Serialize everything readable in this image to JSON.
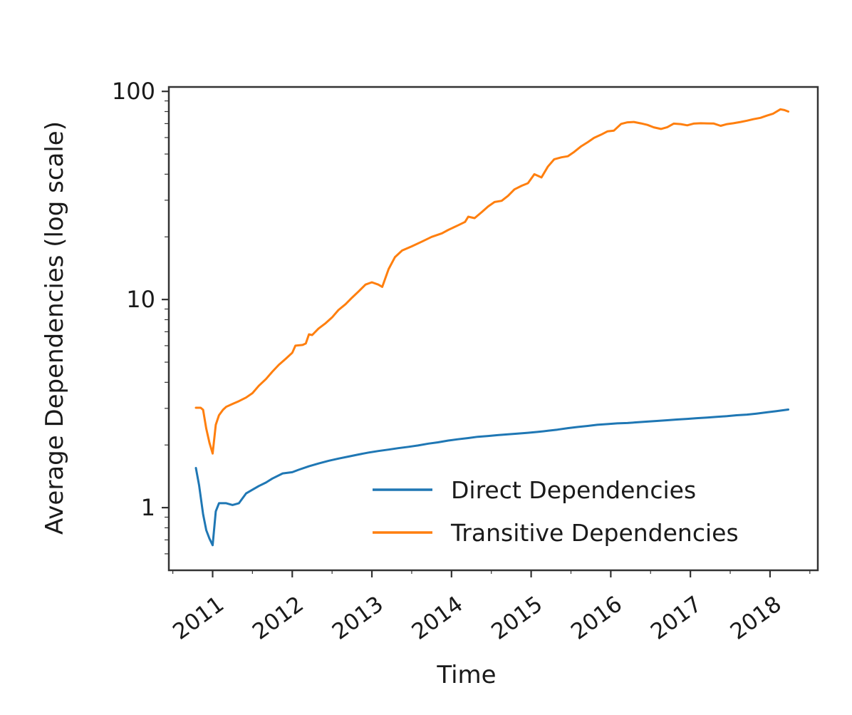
{
  "figure": {
    "background": "#ffffff",
    "frame_color": "#333333",
    "text_color": "#1a1a1a"
  },
  "chart_data": {
    "type": "line",
    "xlabel": "Time",
    "ylabel": "Average Dependencies (log scale)",
    "y_scale": "log",
    "grid": "off",
    "legend_position": "inside lower-right",
    "xlim": [
      2010.45,
      2018.6
    ],
    "ylim": [
      0.5,
      105
    ],
    "x_ticks": [
      2011,
      2012,
      2013,
      2014,
      2015,
      2016,
      2017,
      2018
    ],
    "y_ticks": [
      1,
      10,
      100
    ],
    "series": [
      {
        "name": "Direct Dependencies",
        "color": "#1f77b4",
        "points": [
          [
            2010.79,
            1.55
          ],
          [
            2010.83,
            1.28
          ],
          [
            2010.88,
            0.93
          ],
          [
            2010.92,
            0.78
          ],
          [
            2010.96,
            0.71
          ],
          [
            2011.0,
            0.66
          ],
          [
            2011.04,
            0.96
          ],
          [
            2011.08,
            1.05
          ],
          [
            2011.17,
            1.05
          ],
          [
            2011.25,
            1.03
          ],
          [
            2011.33,
            1.05
          ],
          [
            2011.42,
            1.17
          ],
          [
            2011.5,
            1.22
          ],
          [
            2011.58,
            1.27
          ],
          [
            2011.67,
            1.32
          ],
          [
            2011.75,
            1.38
          ],
          [
            2011.88,
            1.46
          ],
          [
            2012.0,
            1.48
          ],
          [
            2012.08,
            1.52
          ],
          [
            2012.21,
            1.58
          ],
          [
            2012.33,
            1.63
          ],
          [
            2012.46,
            1.68
          ],
          [
            2012.58,
            1.72
          ],
          [
            2012.71,
            1.76
          ],
          [
            2012.83,
            1.8
          ],
          [
            2012.96,
            1.84
          ],
          [
            2013.08,
            1.87
          ],
          [
            2013.21,
            1.9
          ],
          [
            2013.33,
            1.93
          ],
          [
            2013.46,
            1.96
          ],
          [
            2013.58,
            1.99
          ],
          [
            2013.71,
            2.03
          ],
          [
            2013.83,
            2.06
          ],
          [
            2013.96,
            2.1
          ],
          [
            2014.08,
            2.13
          ],
          [
            2014.21,
            2.16
          ],
          [
            2014.33,
            2.19
          ],
          [
            2014.46,
            2.21
          ],
          [
            2014.58,
            2.23
          ],
          [
            2014.71,
            2.25
          ],
          [
            2014.83,
            2.27
          ],
          [
            2014.96,
            2.29
          ],
          [
            2015.08,
            2.31
          ],
          [
            2015.21,
            2.34
          ],
          [
            2015.33,
            2.37
          ],
          [
            2015.46,
            2.41
          ],
          [
            2015.58,
            2.44
          ],
          [
            2015.71,
            2.47
          ],
          [
            2015.83,
            2.5
          ],
          [
            2015.96,
            2.52
          ],
          [
            2016.08,
            2.54
          ],
          [
            2016.21,
            2.55
          ],
          [
            2016.33,
            2.57
          ],
          [
            2016.46,
            2.59
          ],
          [
            2016.58,
            2.61
          ],
          [
            2016.71,
            2.63
          ],
          [
            2016.83,
            2.65
          ],
          [
            2016.96,
            2.67
          ],
          [
            2017.08,
            2.69
          ],
          [
            2017.21,
            2.71
          ],
          [
            2017.33,
            2.73
          ],
          [
            2017.46,
            2.75
          ],
          [
            2017.58,
            2.78
          ],
          [
            2017.71,
            2.8
          ],
          [
            2017.83,
            2.83
          ],
          [
            2017.96,
            2.87
          ],
          [
            2018.08,
            2.91
          ],
          [
            2018.23,
            2.96
          ]
        ]
      },
      {
        "name": "Transitive Dependencies",
        "color": "#ff7f0e",
        "points": [
          [
            2010.79,
            3.02
          ],
          [
            2010.85,
            3.02
          ],
          [
            2010.88,
            2.95
          ],
          [
            2010.92,
            2.4
          ],
          [
            2010.96,
            2.05
          ],
          [
            2011.0,
            1.82
          ],
          [
            2011.04,
            2.5
          ],
          [
            2011.08,
            2.78
          ],
          [
            2011.13,
            2.95
          ],
          [
            2011.17,
            3.05
          ],
          [
            2011.25,
            3.15
          ],
          [
            2011.33,
            3.25
          ],
          [
            2011.42,
            3.38
          ],
          [
            2011.5,
            3.55
          ],
          [
            2011.58,
            3.85
          ],
          [
            2011.67,
            4.15
          ],
          [
            2011.75,
            4.5
          ],
          [
            2011.83,
            4.85
          ],
          [
            2011.92,
            5.2
          ],
          [
            2012.0,
            5.55
          ],
          [
            2012.04,
            6.0
          ],
          [
            2012.13,
            6.05
          ],
          [
            2012.17,
            6.15
          ],
          [
            2012.21,
            6.8
          ],
          [
            2012.25,
            6.75
          ],
          [
            2012.33,
            7.25
          ],
          [
            2012.42,
            7.7
          ],
          [
            2012.5,
            8.2
          ],
          [
            2012.58,
            8.9
          ],
          [
            2012.67,
            9.5
          ],
          [
            2012.75,
            10.2
          ],
          [
            2012.83,
            10.9
          ],
          [
            2012.92,
            11.8
          ],
          [
            2013.0,
            12.1
          ],
          [
            2013.08,
            11.8
          ],
          [
            2013.13,
            11.5
          ],
          [
            2013.21,
            14.0
          ],
          [
            2013.29,
            16.0
          ],
          [
            2013.38,
            17.2
          ],
          [
            2013.5,
            18.0
          ],
          [
            2013.63,
            19.0
          ],
          [
            2013.75,
            20.0
          ],
          [
            2013.88,
            20.8
          ],
          [
            2013.96,
            21.6
          ],
          [
            2014.08,
            22.7
          ],
          [
            2014.17,
            23.6
          ],
          [
            2014.21,
            25.0
          ],
          [
            2014.29,
            24.6
          ],
          [
            2014.38,
            26.3
          ],
          [
            2014.46,
            28.0
          ],
          [
            2014.54,
            29.4
          ],
          [
            2014.63,
            29.8
          ],
          [
            2014.71,
            31.5
          ],
          [
            2014.79,
            33.8
          ],
          [
            2014.88,
            35.2
          ],
          [
            2014.96,
            36.2
          ],
          [
            2015.04,
            40.0
          ],
          [
            2015.13,
            38.6
          ],
          [
            2015.21,
            43.5
          ],
          [
            2015.29,
            47.2
          ],
          [
            2015.38,
            48.2
          ],
          [
            2015.46,
            48.8
          ],
          [
            2015.54,
            51.2
          ],
          [
            2015.63,
            54.5
          ],
          [
            2015.71,
            57.0
          ],
          [
            2015.79,
            59.8
          ],
          [
            2015.88,
            62.0
          ],
          [
            2015.96,
            64.3
          ],
          [
            2016.04,
            64.8
          ],
          [
            2016.13,
            69.8
          ],
          [
            2016.21,
            71.0
          ],
          [
            2016.29,
            71.3
          ],
          [
            2016.38,
            70.2
          ],
          [
            2016.46,
            69.0
          ],
          [
            2016.54,
            67.2
          ],
          [
            2016.63,
            66.0
          ],
          [
            2016.71,
            67.3
          ],
          [
            2016.79,
            70.0
          ],
          [
            2016.88,
            69.6
          ],
          [
            2016.96,
            68.7
          ],
          [
            2017.04,
            70.0
          ],
          [
            2017.13,
            70.3
          ],
          [
            2017.21,
            70.2
          ],
          [
            2017.29,
            70.1
          ],
          [
            2017.38,
            68.3
          ],
          [
            2017.46,
            69.6
          ],
          [
            2017.54,
            70.3
          ],
          [
            2017.63,
            71.3
          ],
          [
            2017.71,
            72.3
          ],
          [
            2017.79,
            73.5
          ],
          [
            2017.88,
            74.6
          ],
          [
            2017.96,
            76.5
          ],
          [
            2018.04,
            78.2
          ],
          [
            2018.13,
            82.0
          ],
          [
            2018.18,
            81.3
          ],
          [
            2018.23,
            80.0
          ]
        ]
      }
    ]
  }
}
